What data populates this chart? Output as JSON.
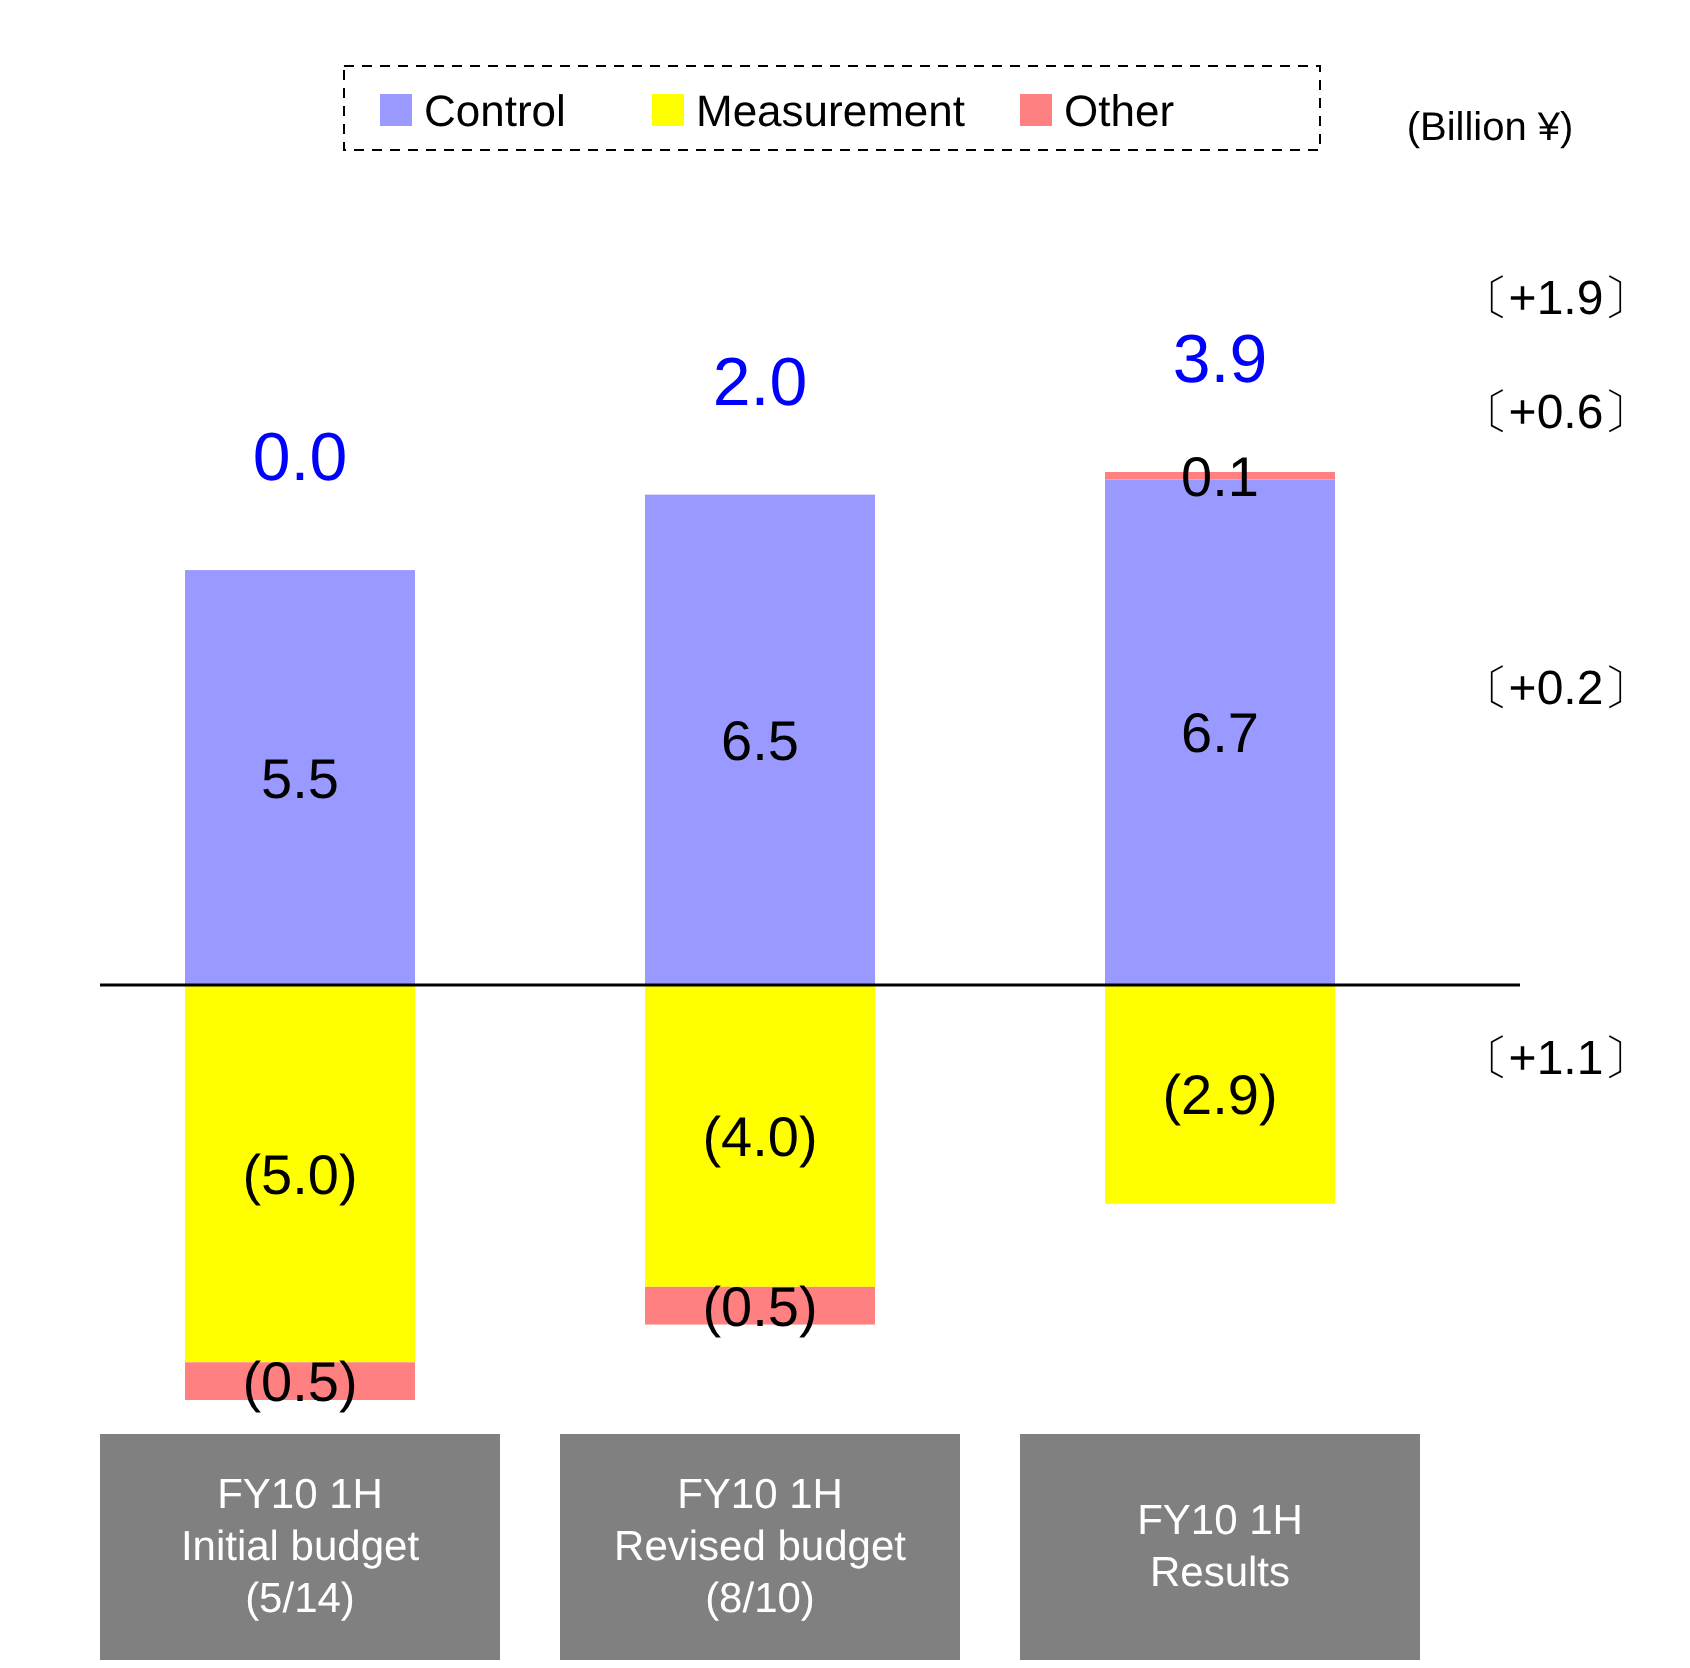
{
  "chart_data": {
    "type": "bar",
    "stacked": true,
    "legend": "top",
    "categories": [
      "FY10 1H\nInitial budget\n(5/14)",
      "FY10 1H\nRevised budget\n(8/10)",
      "FY10 1H\nResults"
    ],
    "series": [
      {
        "name": "Control",
        "color": "#9999ff",
        "values": [
          5.5,
          6.5,
          6.7
        ],
        "value_labels": [
          "5.5",
          "6.5",
          "6.7"
        ]
      },
      {
        "name": "Measurement",
        "color": "#ffff00",
        "values": [
          -5.0,
          -4.0,
          -2.9
        ],
        "value_labels": [
          "(5.0)",
          "(4.0)",
          "(2.9)"
        ]
      },
      {
        "name": "Other",
        "color": "#ff8080",
        "values": [
          -0.5,
          -0.5,
          0.1
        ],
        "value_labels": [
          "(0.5)",
          "(0.5)",
          "0.1"
        ]
      }
    ],
    "totals": [
      "0.0",
      "2.0",
      "3.9"
    ],
    "annotations": [
      "(Billion ¥)",
      "〔+1.9〕",
      "〔+0.6〕",
      "〔+0.2〕",
      "〔+1.1〕"
    ]
  }
}
